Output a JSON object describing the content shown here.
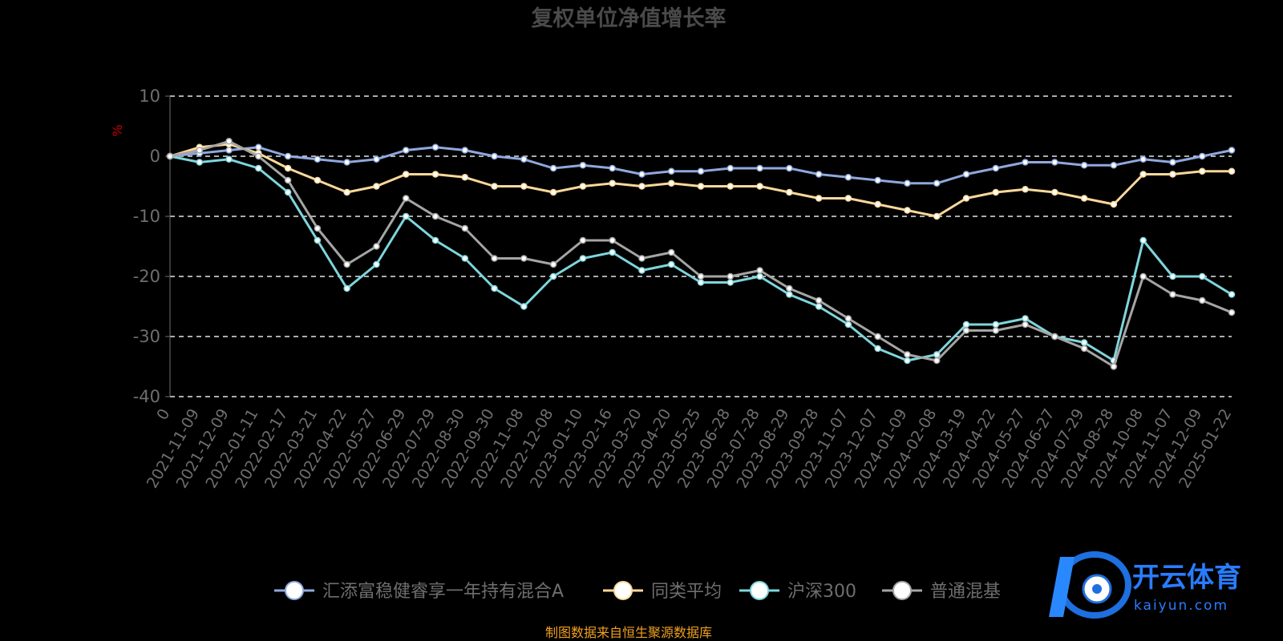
{
  "chart_data": {
    "type": "line",
    "title": "复权单位净值增长率",
    "ylabel": "%",
    "xlabel": "",
    "ylim": [
      -40,
      10
    ],
    "yticks": [
      10,
      0,
      -10,
      -20,
      -30,
      -40
    ],
    "grid": true,
    "legend_position": "bottom",
    "x": [
      "0",
      "2021-11-09",
      "2021-12-09",
      "2022-01-11",
      "2022-02-17",
      "2022-03-21",
      "2022-04-22",
      "2022-05-27",
      "2022-06-29",
      "2022-07-29",
      "2022-08-30",
      "2022-09-30",
      "2022-11-08",
      "2022-12-08",
      "2023-01-10",
      "2023-02-16",
      "2023-03-20",
      "2023-04-20",
      "2023-05-25",
      "2023-06-28",
      "2023-07-28",
      "2023-08-29",
      "2023-09-28",
      "2023-11-07",
      "2023-12-07",
      "2024-01-09",
      "2024-02-08",
      "2024-03-19",
      "2024-04-22",
      "2024-05-27",
      "2024-06-27",
      "2024-07-29",
      "2024-08-28",
      "2024-10-08",
      "2024-11-07",
      "2024-12-09",
      "2025-01-22"
    ],
    "series": [
      {
        "name": "汇添富稳健睿享一年持有混合A",
        "color": "#8fa8de",
        "values": [
          0,
          0.5,
          1,
          1.5,
          0,
          -0.5,
          -1,
          -0.5,
          1,
          1.5,
          1,
          0,
          -0.5,
          -2,
          -1.5,
          -2,
          -3,
          -2.5,
          -2.5,
          -2,
          -2,
          -2,
          -3,
          -3.5,
          -4,
          -4.5,
          -4.5,
          -3,
          -2,
          -1,
          -1,
          -1.5,
          -1.5,
          -0.5,
          -1,
          0,
          1
        ]
      },
      {
        "name": "同类平均",
        "color": "#fbd89a",
        "values": [
          0,
          1.5,
          2,
          0.5,
          -2,
          -4,
          -6,
          -5,
          -3,
          -3,
          -3.5,
          -5,
          -5,
          -6,
          -5,
          -4.5,
          -5,
          -4.5,
          -5,
          -5,
          -5,
          -6,
          -7,
          -7,
          -8,
          -9,
          -10,
          -7,
          -6,
          -5.5,
          -6,
          -7,
          -8,
          -3,
          -3,
          -2.5,
          -2.5
        ]
      },
      {
        "name": "沪深300",
        "color": "#7ed6dc",
        "values": [
          0,
          -1,
          -0.5,
          -2,
          -6,
          -14,
          -22,
          -18,
          -10,
          -14,
          -17,
          -22,
          -25,
          -20,
          -17,
          -16,
          -19,
          -18,
          -21,
          -21,
          -20,
          -23,
          -25,
          -28,
          -32,
          -34,
          -33,
          -28,
          -28,
          -27,
          -30,
          -31,
          -34,
          -14,
          -20,
          -20,
          -23
        ]
      },
      {
        "name": "普通混基",
        "color": "#a5a5a5",
        "values": [
          0,
          1,
          2.5,
          0,
          -4,
          -12,
          -18,
          -15,
          -7,
          -10,
          -12,
          -17,
          -17,
          -18,
          -14,
          -14,
          -17,
          -16,
          -20,
          -20,
          -19,
          -22,
          -24,
          -27,
          -30,
          -33,
          -34,
          -29,
          -29,
          -28,
          -30,
          -32,
          -35,
          -20,
          -23,
          -24,
          -26
        ]
      }
    ]
  },
  "footer": {
    "source_note": "制图数据来自恒生聚源数据库"
  },
  "watermark": {
    "cn": "开云体育",
    "en": "kaiyun.com"
  }
}
